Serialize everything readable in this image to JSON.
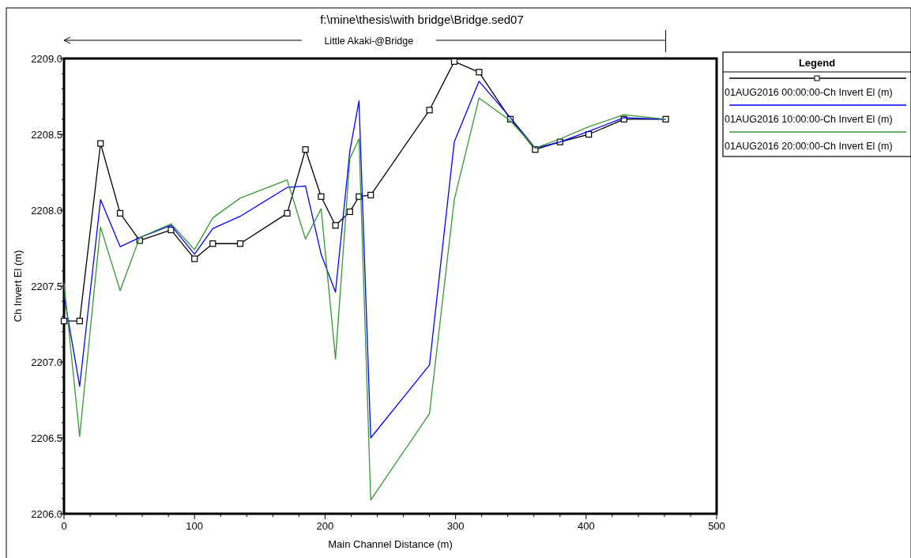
{
  "chart_data": {
    "type": "line",
    "title": "f:\\mine\\thesis\\with bridge\\Bridge.sed07",
    "xlabel": "Main Channel Distance (m)",
    "ylabel": "Ch Invert El (m)",
    "legend_title": "Legend",
    "legend": "right",
    "grid": false,
    "annotations": [
      "Little Akaki-@Bridge"
    ],
    "x": [
      0,
      12,
      28,
      43,
      58,
      82,
      100,
      114,
      135,
      171,
      185,
      197,
      208,
      219,
      226,
      235,
      280,
      299,
      318,
      342,
      361,
      380,
      402,
      429,
      461
    ],
    "xlim": [
      0,
      500
    ],
    "ylim": [
      2206,
      2209
    ],
    "xticks": [
      0,
      {
        "value": 20,
        "label": null
      },
      {
        "value": 40,
        "label": null
      },
      {
        "value": 60,
        "label": null
      },
      {
        "value": 80,
        "label": null
      },
      100,
      {
        "value": 120,
        "label": null
      },
      {
        "value": 140,
        "label": null
      },
      {
        "value": 160,
        "label": null
      },
      {
        "value": 180,
        "label": null
      },
      200,
      {
        "value": 220,
        "label": null
      },
      {
        "value": 240,
        "label": null
      },
      {
        "value": 260,
        "label": null
      },
      {
        "value": 280,
        "label": null
      },
      300,
      {
        "value": 320,
        "label": null
      },
      {
        "value": 340,
        "label": null
      },
      {
        "value": 360,
        "label": null
      },
      {
        "value": 380,
        "label": null
      },
      400,
      {
        "value": 420,
        "label": null
      },
      {
        "value": 440,
        "label": null
      },
      {
        "value": 460,
        "label": null
      },
      {
        "value": 480,
        "label": null
      },
      500
    ],
    "yticks": [
      {
        "value": 2206,
        "label": "2206.0"
      },
      {
        "value": 2206.1,
        "label": null
      },
      {
        "value": 2206.2,
        "label": null
      },
      {
        "value": 2206.3,
        "label": null
      },
      {
        "value": 2206.4,
        "label": null
      },
      {
        "value": 2206.5,
        "label": "2206.5"
      },
      {
        "value": 2206.6,
        "label": null
      },
      {
        "value": 2206.7,
        "label": null
      },
      {
        "value": 2206.8,
        "label": null
      },
      {
        "value": 2206.9,
        "label": null
      },
      {
        "value": 2207,
        "label": "2207.0"
      },
      {
        "value": 2207.1,
        "label": null
      },
      {
        "value": 2207.2,
        "label": null
      },
      {
        "value": 2207.3,
        "label": null
      },
      {
        "value": 2207.4,
        "label": null
      },
      {
        "value": 2207.5,
        "label": "2207.5"
      },
      {
        "value": 2207.6,
        "label": null
      },
      {
        "value": 2207.7,
        "label": null
      },
      {
        "value": 2207.8,
        "label": null
      },
      {
        "value": 2207.9,
        "label": null
      },
      {
        "value": 2208,
        "label": "2208.0"
      },
      {
        "value": 2208.1,
        "label": null
      },
      {
        "value": 2208.2,
        "label": null
      },
      {
        "value": 2208.3,
        "label": null
      },
      {
        "value": 2208.4,
        "label": null
      },
      {
        "value": 2208.5,
        "label": "2208.5"
      },
      {
        "value": 2208.6,
        "label": null
      },
      {
        "value": 2208.7,
        "label": null
      },
      {
        "value": 2208.8,
        "label": null
      },
      {
        "value": 2208.9,
        "label": null
      },
      {
        "value": 2209,
        "label": "2209.0"
      }
    ],
    "series": [
      {
        "name": "01AUG2016 00:00:00-Ch Invert El (m)",
        "color": "#000000",
        "marker": "square",
        "values": [
          2207.27,
          2207.27,
          2208.44,
          2207.98,
          2207.8,
          2207.87,
          2207.68,
          2207.78,
          2207.78,
          2207.98,
          2208.4,
          2208.09,
          2207.9,
          2207.99,
          2208.09,
          2208.1,
          2208.66,
          2208.98,
          2208.91,
          2208.6,
          2208.4,
          2208.45,
          2208.5,
          2208.6,
          2208.6
        ]
      },
      {
        "name": "01AUG2016 10:00:00-Ch Invert El (m)",
        "color": "#0000ff",
        "marker": "none",
        "values": [
          2207.44,
          2206.84,
          2208.07,
          2207.76,
          2207.82,
          2207.9,
          2207.71,
          2207.88,
          2207.96,
          2208.15,
          2208.16,
          2207.71,
          2207.46,
          2208.39,
          2208.72,
          2206.5,
          2206.98,
          2208.45,
          2208.85,
          2208.61,
          2208.41,
          2208.45,
          2208.52,
          2208.61,
          2208.6
        ]
      },
      {
        "name": "01AUG2016 20:00:00-Ch Invert El (m)",
        "color": "#339933",
        "marker": "none",
        "values": [
          2207.52,
          2206.51,
          2207.89,
          2207.47,
          2207.82,
          2207.91,
          2207.74,
          2207.95,
          2208.08,
          2208.2,
          2207.81,
          2208.01,
          2207.02,
          2208.34,
          2208.47,
          2206.09,
          2206.66,
          2208.07,
          2208.74,
          2208.59,
          2208.41,
          2208.47,
          2208.55,
          2208.63,
          2208.6
        ]
      }
    ]
  }
}
